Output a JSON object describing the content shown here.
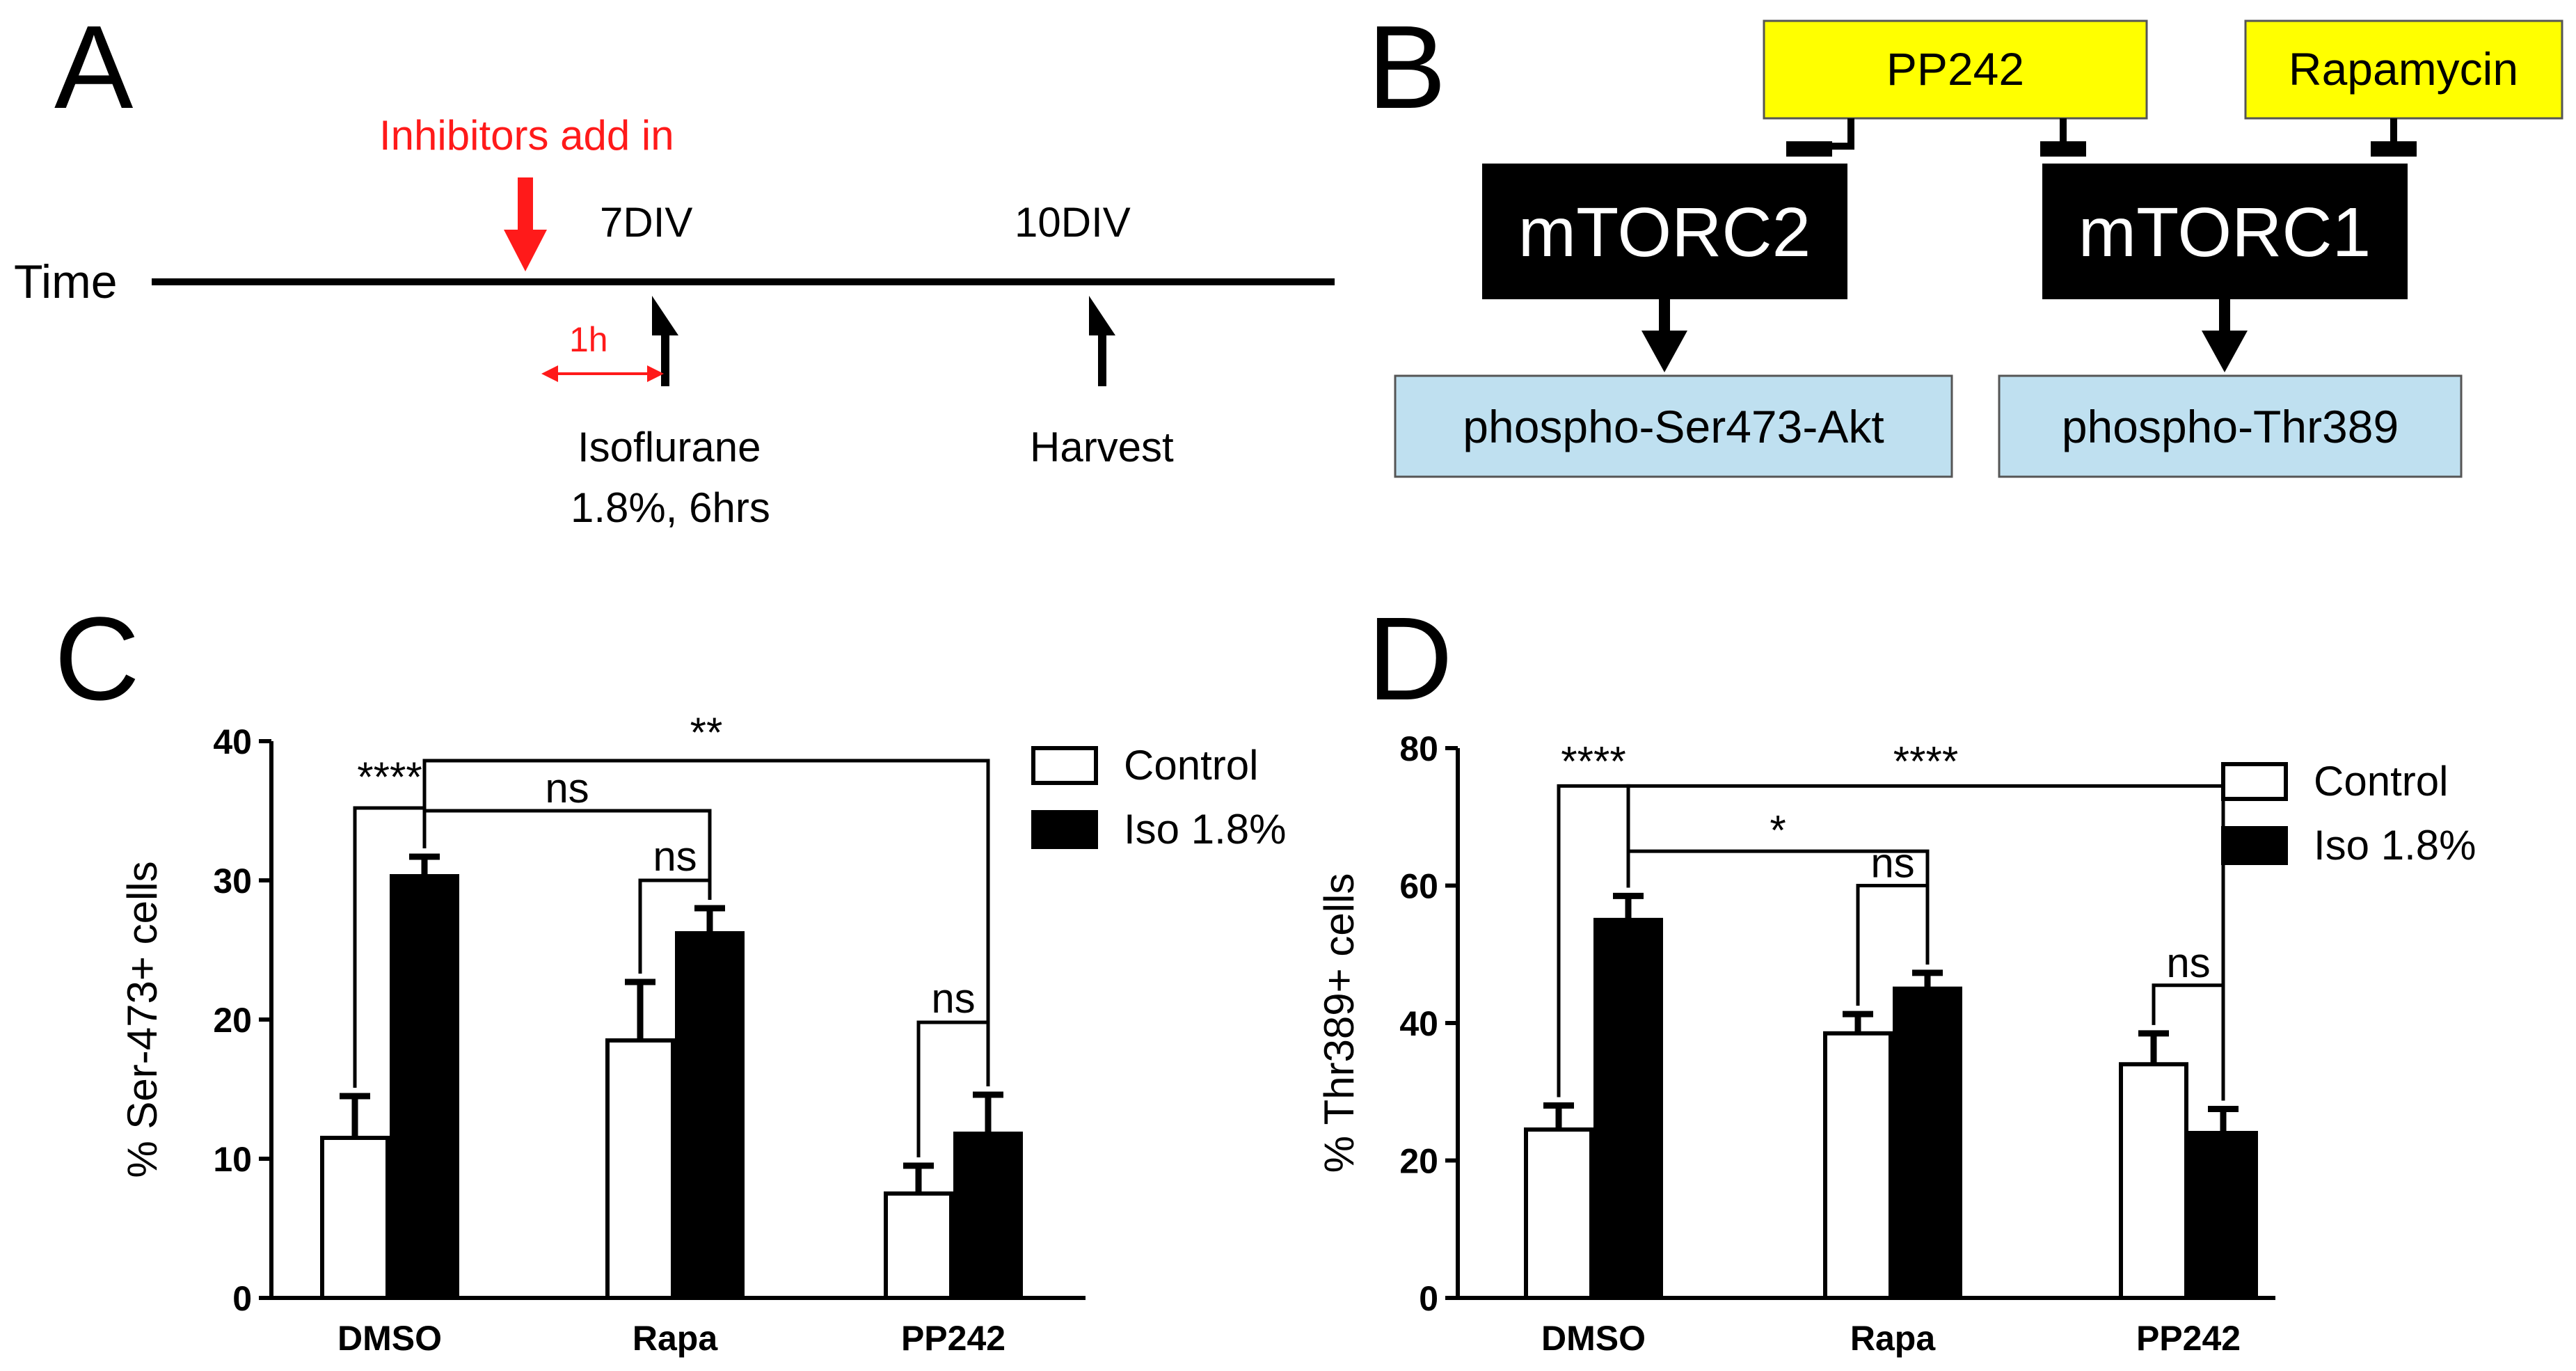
{
  "panels": {
    "A": {
      "letter": "A",
      "time_label": "Time",
      "inhibitors_label": "Inhibitors add in",
      "markers": {
        "div7": "7DIV",
        "div10": "10DIV",
        "one_hour": "1h",
        "isoflurane_line1": "Isoflurane",
        "isoflurane_line2": "1.8%, 6hrs",
        "harvest": "Harvest"
      }
    },
    "B": {
      "letter": "B",
      "inhibitors": {
        "pp242": "PP242",
        "rapamycin": "Rapamycin"
      },
      "complexes": {
        "mtorc2": "mTORC2",
        "mtorc1": "mTORC1"
      },
      "readouts": {
        "ser473": "phospho-Ser473-Akt",
        "thr389": "phospho-Thr389"
      }
    },
    "C": {
      "letter": "C"
    },
    "D": {
      "letter": "D"
    }
  },
  "colors": {
    "red": "#ff1a1a",
    "yellow": "#ffff00",
    "light_blue": "#bfe0f0",
    "black": "#000000",
    "white": "#ffffff"
  },
  "chart_data": [
    {
      "type": "bar",
      "panel": "C",
      "title": "",
      "xlabel": "",
      "ylabel": "% Ser-473+ cells",
      "ylim": [
        0,
        40
      ],
      "yticks": [
        0,
        10,
        20,
        30,
        40
      ],
      "categories": [
        "DMSO",
        "Rapa",
        "PP242"
      ],
      "series": [
        {
          "name": "Control",
          "fill": "white",
          "values": [
            11.5,
            18.5,
            7.5
          ],
          "errors": [
            3.0,
            4.2,
            2.0
          ]
        },
        {
          "name": "Iso 1.8%",
          "fill": "black",
          "values": [
            30.3,
            26.2,
            11.8
          ],
          "errors": [
            1.4,
            1.8,
            2.8
          ]
        }
      ],
      "legend": {
        "position": "top-right",
        "entries": [
          "Control",
          "Iso 1.8%"
        ]
      },
      "annotations": [
        {
          "label": "****",
          "kind": "pair",
          "category": 0,
          "height": 35.2,
          "label_at": 36.4
        },
        {
          "label": "**",
          "kind": "span",
          "from_category": 0,
          "to_category": 2,
          "height": 38.6,
          "label_at": 39.6
        },
        {
          "label": "ns",
          "kind": "span",
          "from_category": 0,
          "to_category": 1,
          "height": 35.0,
          "label_at": 35.6
        },
        {
          "label": "ns",
          "kind": "pair",
          "category": 1,
          "height": 30.0,
          "label_at": 30.7
        },
        {
          "label": "ns",
          "kind": "pair",
          "category": 2,
          "height": 19.8,
          "label_at": 20.5
        }
      ]
    },
    {
      "type": "bar",
      "panel": "D",
      "title": "",
      "xlabel": "",
      "ylabel": "% Thr389+ cells",
      "ylim": [
        0,
        80
      ],
      "yticks": [
        0,
        20,
        40,
        60,
        80
      ],
      "categories": [
        "DMSO",
        "Rapa",
        "PP242"
      ],
      "series": [
        {
          "name": "Control",
          "fill": "white",
          "values": [
            24.5,
            38.5,
            34.0
          ],
          "errors": [
            3.5,
            2.8,
            4.5
          ]
        },
        {
          "name": "Iso 1.8%",
          "fill": "black",
          "values": [
            55.0,
            45.0,
            24.0
          ],
          "errors": [
            3.5,
            2.3,
            3.5
          ]
        }
      ],
      "legend": {
        "position": "top-right",
        "entries": [
          "Control",
          "Iso 1.8%"
        ]
      },
      "annotations": [
        {
          "label": "****",
          "kind": "pair",
          "category": 0,
          "height": 74.5,
          "label_at": 76.0
        },
        {
          "label": "****",
          "kind": "span",
          "from_category": 0,
          "to_category": 2,
          "height": 74.5,
          "label_at": 76.0
        },
        {
          "label": "*",
          "kind": "span",
          "from_category": 0,
          "to_category": 1,
          "height": 65.0,
          "label_at": 66.0
        },
        {
          "label": "ns",
          "kind": "pair",
          "category": 1,
          "height": 60.0,
          "label_at": 61.2
        },
        {
          "label": "ns",
          "kind": "pair",
          "category": 2,
          "height": 45.5,
          "label_at": 46.7
        }
      ]
    }
  ]
}
